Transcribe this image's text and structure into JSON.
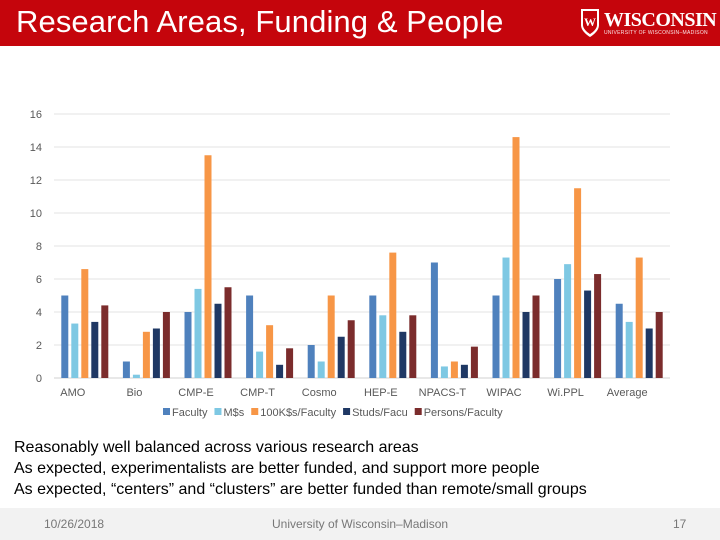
{
  "slide": {
    "title": "Research Areas, Funding & People",
    "logo_text": "WISCONSIN",
    "logo_subtext": "UNIVERSITY OF WISCONSIN–MADISON",
    "bullets": [
      "Reasonably well balanced across various research areas",
      "As expected, experimentalists are better funded, and support more people",
      "As expected, “centers” and “clusters” are better funded than remote/small groups"
    ],
    "footer": {
      "date": "10/26/2018",
      "center": "University of Wisconsin–Madison",
      "page": "17"
    },
    "colors": {
      "header": "#c5050c",
      "footer": "#f2f2f2"
    }
  },
  "chart_data": {
    "type": "bar",
    "categories": [
      "AMO",
      "Bio",
      "CMP-E",
      "CMP-T",
      "Cosmo",
      "HEP-E",
      "NPACS-T",
      "WIPAC",
      "Wi.PPL",
      "Average"
    ],
    "series": [
      {
        "name": "Faculty",
        "color": "#4f81bd",
        "values": [
          5,
          1,
          4,
          5,
          2,
          5,
          7,
          5,
          6,
          4.5
        ]
      },
      {
        "name": "M$s",
        "color": "#7ec8e3",
        "values": [
          3.3,
          0.2,
          5.4,
          1.6,
          1.0,
          3.8,
          0.7,
          7.3,
          6.9,
          3.4
        ]
      },
      {
        "name": "100K$s/Faculty",
        "color": "#f79646",
        "values": [
          6.6,
          2.8,
          13.5,
          3.2,
          5.0,
          7.6,
          1.0,
          14.6,
          11.5,
          7.3
        ]
      },
      {
        "name": "Studs/Facu",
        "color": "#1f3864",
        "values": [
          3.4,
          3.0,
          4.5,
          0.8,
          2.5,
          2.8,
          0.8,
          4.0,
          5.3,
          3.0
        ]
      },
      {
        "name": "Persons/Faculty",
        "color": "#7b2c2c",
        "values": [
          4.4,
          4.0,
          5.5,
          1.8,
          3.5,
          3.8,
          1.9,
          5.0,
          6.3,
          4.0
        ]
      }
    ],
    "yticks": [
      0,
      2,
      4,
      6,
      8,
      10,
      12,
      14,
      16
    ],
    "ylim": [
      0,
      16
    ],
    "grid": true,
    "legend": "bottom"
  }
}
